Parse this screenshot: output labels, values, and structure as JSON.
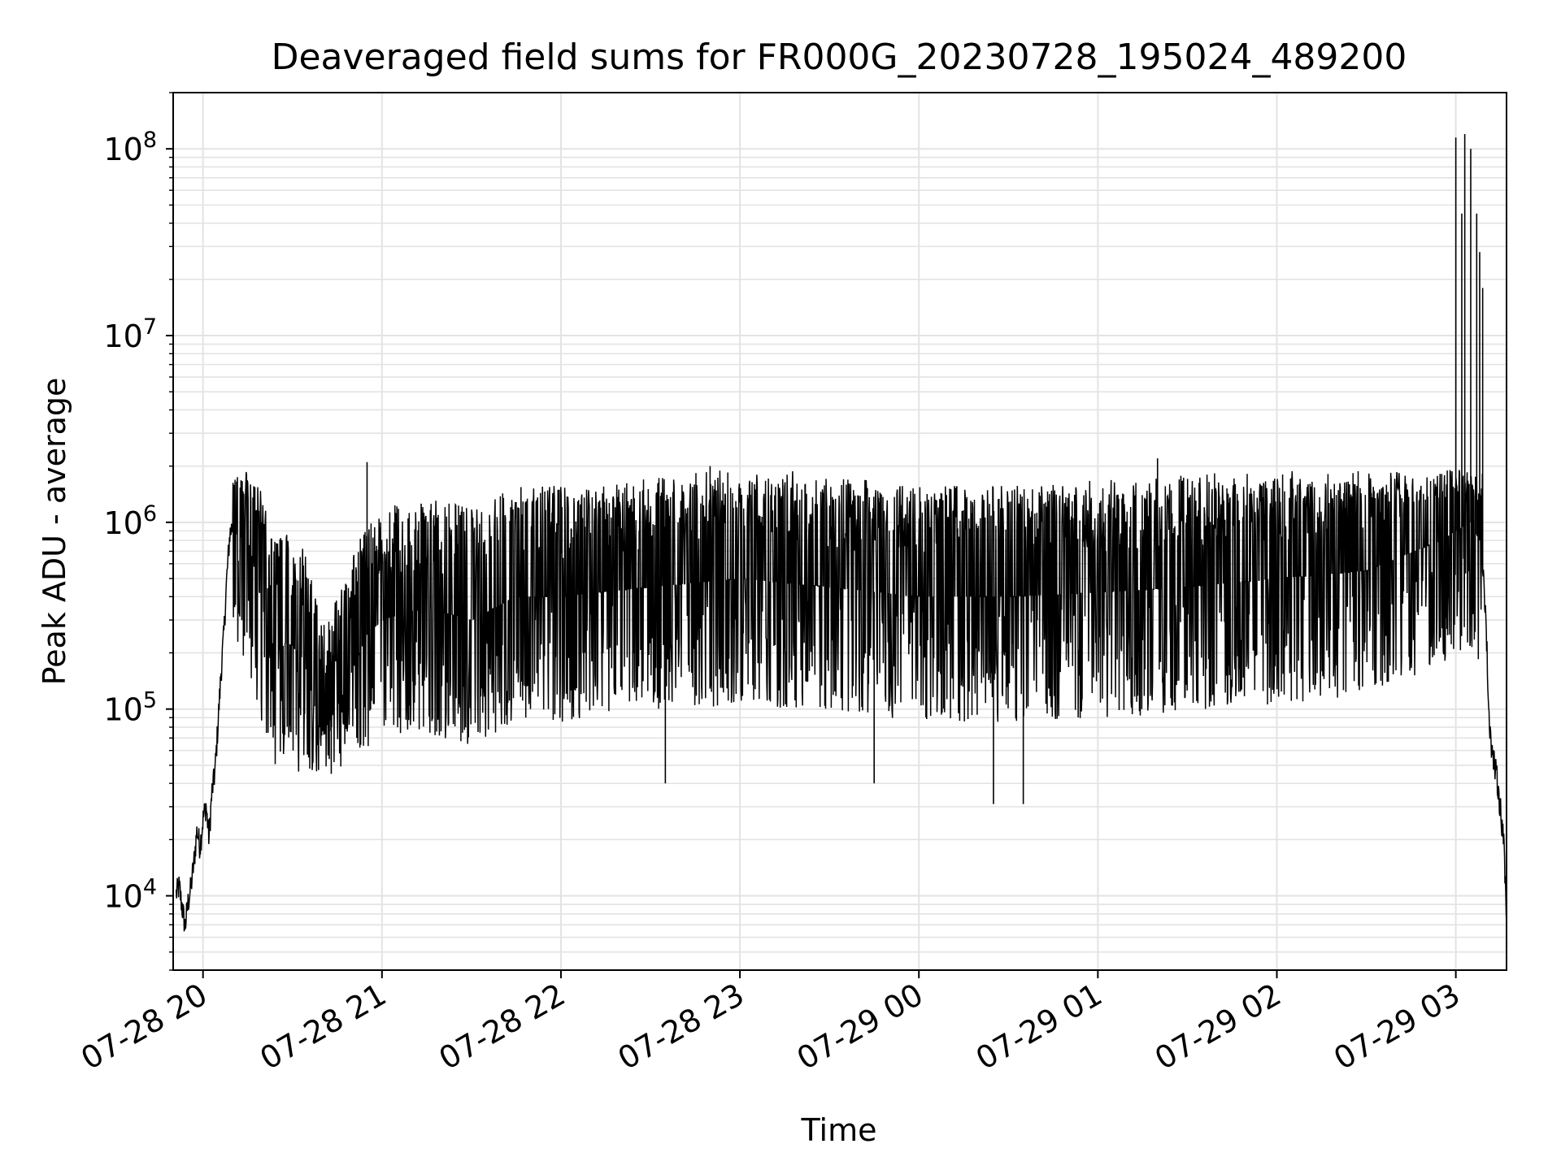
{
  "chart_data": {
    "type": "line",
    "title": "Deaveraged field sums for FR000G_20230728_195024_489200",
    "xlabel": "Time",
    "ylabel": "Peak ADU - average",
    "yscale": "log",
    "ylim": [
      4000,
      200000000
    ],
    "xlim": [
      "2023-07-28 19:50",
      "2023-07-29 03:17"
    ],
    "grid": true,
    "line_color": "#000000",
    "x_ticks": [
      {
        "value": "2023-07-28 20:00",
        "label": "07-28 20"
      },
      {
        "value": "2023-07-28 21:00",
        "label": "07-28 21"
      },
      {
        "value": "2023-07-28 22:00",
        "label": "07-28 22"
      },
      {
        "value": "2023-07-28 23:00",
        "label": "07-28 23"
      },
      {
        "value": "2023-07-29 00:00",
        "label": "07-29 00"
      },
      {
        "value": "2023-07-29 01:00",
        "label": "07-29 01"
      },
      {
        "value": "2023-07-29 02:00",
        "label": "07-29 02"
      },
      {
        "value": "2023-07-29 03:00",
        "label": "07-29 03"
      }
    ],
    "y_ticks": [
      {
        "value": 10000,
        "base": "10",
        "exp": "4"
      },
      {
        "value": 100000,
        "base": "10",
        "exp": "5"
      },
      {
        "value": 1000000,
        "base": "10",
        "exp": "6"
      },
      {
        "value": 10000000,
        "base": "10",
        "exp": "7"
      },
      {
        "value": 100000000,
        "base": "10",
        "exp": "8"
      }
    ],
    "series": [
      {
        "points": [
          [
            "2023-07-28 19:51",
            10000
          ],
          [
            "2023-07-28 19:52",
            11000
          ],
          [
            "2023-07-28 19:53",
            8500
          ],
          [
            "2023-07-28 19:54",
            6700
          ],
          [
            "2023-07-28 19:55",
            9000
          ],
          [
            "2023-07-28 19:56",
            11000
          ],
          [
            "2023-07-28 19:57",
            15000
          ],
          [
            "2023-07-28 19:58",
            22000
          ],
          [
            "2023-07-28 19:59",
            18000
          ],
          [
            "2023-07-28 20:00",
            25000
          ],
          [
            "2023-07-28 20:01",
            30000
          ],
          [
            "2023-07-28 20:02",
            20000
          ],
          [
            "2023-07-28 20:03",
            35000
          ],
          [
            "2023-07-28 20:04",
            45000
          ],
          [
            "2023-07-28 20:05",
            80000
          ],
          [
            "2023-07-28 20:06",
            150000
          ],
          [
            "2023-07-28 20:07",
            250000
          ],
          [
            "2023-07-28 20:08",
            500000
          ],
          [
            "2023-07-28 20:09",
            850000
          ],
          [
            "2023-07-28 20:10",
            950000
          ],
          [
            "2023-07-28 20:12",
            800000
          ],
          [
            "2023-07-28 20:14",
            900000
          ],
          [
            "2023-07-28 20:16",
            700000
          ],
          [
            "2023-07-28 20:18",
            500000
          ],
          [
            "2023-07-28 20:20",
            350000
          ],
          [
            "2023-07-28 20:22",
            250000
          ],
          [
            "2023-07-28 20:25",
            200000
          ],
          [
            "2023-07-28 20:28",
            230000
          ],
          [
            "2023-07-28 20:31",
            210000
          ],
          [
            "2023-07-28 20:34",
            180000
          ],
          [
            "2023-07-28 20:37",
            110000
          ],
          [
            "2023-07-28 20:40",
            70000
          ],
          [
            "2023-07-28 20:43",
            90000
          ],
          [
            "2023-07-28 20:46",
            110000
          ],
          [
            "2023-07-28 20:50",
            160000
          ],
          [
            "2023-07-28 20:55",
            250000
          ],
          [
            "2023-07-28 21:00",
            300000
          ],
          [
            "2023-07-28 21:15",
            350000
          ],
          [
            "2023-07-28 21:30",
            300000
          ],
          [
            "2023-07-28 21:45",
            400000
          ],
          [
            "2023-07-28 22:00",
            400000
          ],
          [
            "2023-07-28 22:30",
            450000
          ],
          [
            "2023-07-28 23:00",
            500000
          ],
          [
            "2023-07-28 23:30",
            450000
          ],
          [
            "2023-07-29 00:00",
            400000
          ],
          [
            "2023-07-29 00:30",
            400000
          ],
          [
            "2023-07-29 01:00",
            420000
          ],
          [
            "2023-07-29 01:30",
            450000
          ],
          [
            "2023-07-29 02:00",
            500000
          ],
          [
            "2023-07-29 02:30",
            550000
          ],
          [
            "2023-07-29 02:55",
            800000
          ],
          [
            "2023-07-29 03:00",
            900000
          ],
          [
            "2023-07-29 03:05",
            1000000
          ],
          [
            "2023-07-29 03:08",
            800000
          ],
          [
            "2023-07-29 03:10",
            350000
          ],
          [
            "2023-07-29 03:11",
            100000
          ],
          [
            "2023-07-29 03:12",
            60000
          ],
          [
            "2023-07-29 03:14",
            40000
          ],
          [
            "2023-07-29 03:16",
            20000
          ],
          [
            "2023-07-29 03:17",
            7000
          ]
        ],
        "spikes": [
          [
            "2023-07-28 20:55",
            2100000
          ],
          [
            "2023-07-28 22:50",
            2000000
          ],
          [
            "2023-07-29 01:20",
            2200000
          ],
          [
            "2023-07-29 00:25",
            31000
          ],
          [
            "2023-07-28 22:35",
            40000
          ],
          [
            "2023-07-28 20:43",
            45000
          ],
          [
            "2023-07-29 00:35",
            31000
          ],
          [
            "2023-07-28 23:45",
            40000
          ],
          [
            "2023-07-29 03:00",
            115000000
          ],
          [
            "2023-07-29 03:02",
            45000000
          ],
          [
            "2023-07-29 03:03",
            120000000
          ],
          [
            "2023-07-29 03:05",
            100000000
          ],
          [
            "2023-07-29 03:07",
            45000000
          ],
          [
            "2023-07-29 03:08",
            28000000
          ],
          [
            "2023-07-29 03:09",
            18000000
          ]
        ],
        "band_upper": 1600000,
        "band_lower_min": 50000
      }
    ]
  }
}
